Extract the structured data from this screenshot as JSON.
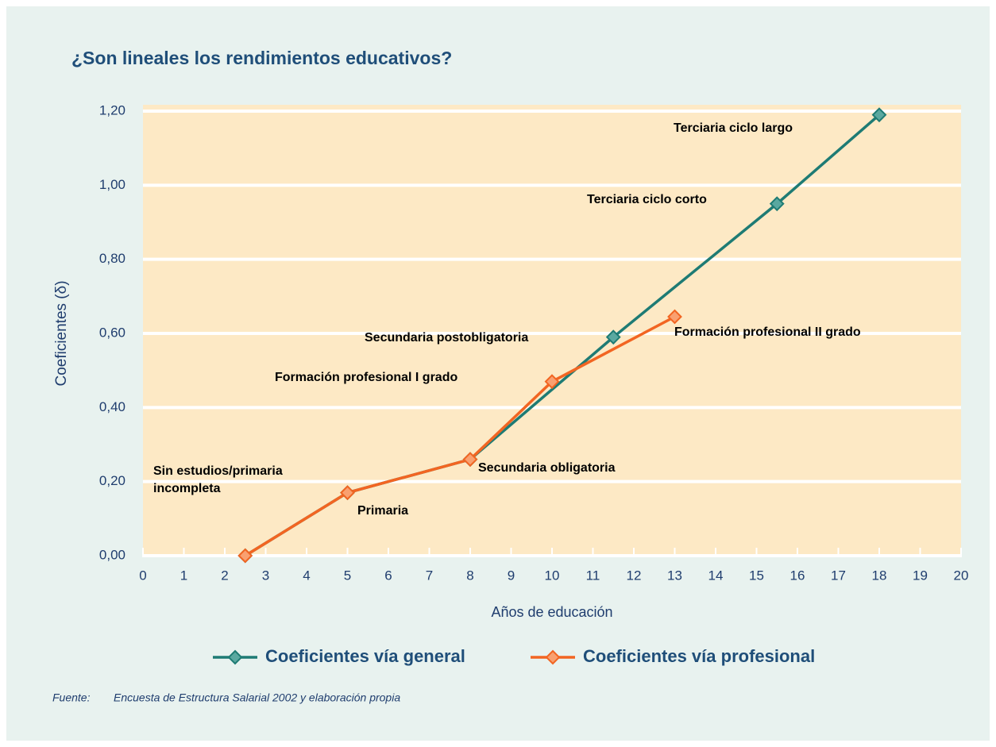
{
  "chart_data": {
    "type": "line",
    "title": "¿Son lineales los rendimientos educativos?",
    "xlabel": "Años de educación",
    "ylabel": "Coeficientes (δ)",
    "xlim": [
      0,
      20
    ],
    "xticks": [
      0,
      1,
      2,
      3,
      4,
      5,
      6,
      7,
      8,
      9,
      10,
      11,
      12,
      13,
      14,
      15,
      16,
      17,
      18,
      19,
      20
    ],
    "ylim": [
      0,
      1.2
    ],
    "yticks": [
      {
        "value": 0,
        "label": "0,00"
      },
      {
        "value": 0.2,
        "label": "0,20"
      },
      {
        "value": 0.4,
        "label": "0,40"
      },
      {
        "value": 0.6,
        "label": "0,60"
      },
      {
        "value": 0.8,
        "label": "0,80"
      },
      {
        "value": 1.0,
        "label": "1,00"
      },
      {
        "value": 1.2,
        "label": "1,20"
      }
    ],
    "grid": true,
    "legend": "bottom",
    "series": [
      {
        "name": "Coeficientes vía general",
        "color": "#1e7b74",
        "x": [
          2.5,
          5,
          8,
          11.5,
          15.5,
          18
        ],
        "values": [
          0,
          0.17,
          0.26,
          0.59,
          0.95,
          1.19
        ]
      },
      {
        "name": "Coeficientes vía profesional",
        "color": "#f26522",
        "x": [
          2.5,
          5,
          8,
          10,
          13
        ],
        "values": [
          0,
          0.17,
          0.26,
          0.47,
          0.645
        ]
      }
    ],
    "annotations": [
      "Sin estudios/primaria incompleta",
      "Primaria",
      "Secundaria obligatoria",
      "Formación profesional I grado",
      "Secundaria postobligatoria",
      "Formación profesional II grado",
      "Terciaria ciclo corto",
      "Terciaria ciclo largo"
    ],
    "source_label": "Fuente:",
    "source": "Encuesta de Estructura Salarial 2002 y elaboración propia"
  }
}
